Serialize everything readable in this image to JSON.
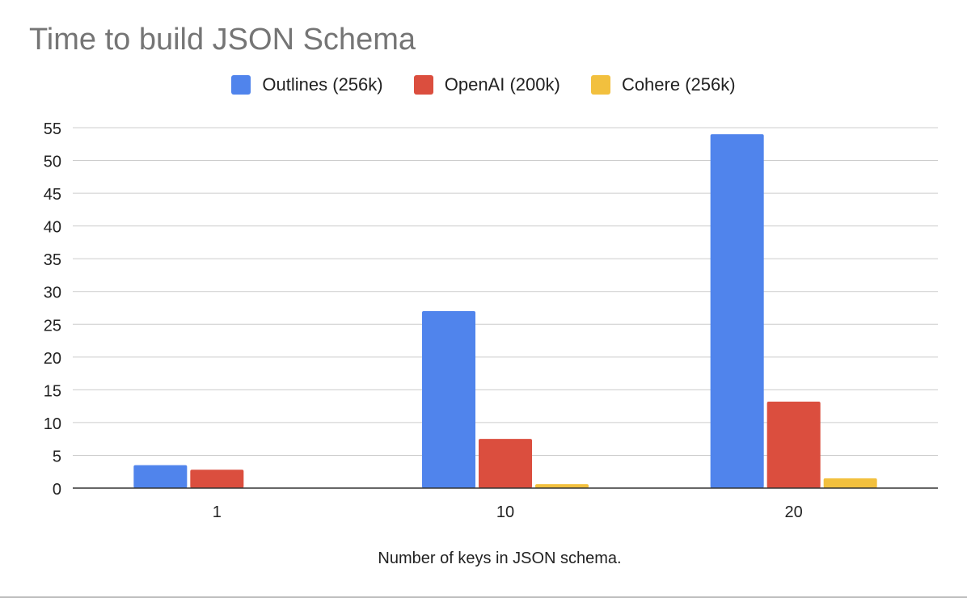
{
  "chart_data": {
    "type": "bar",
    "title": "Time to build JSON Schema",
    "xlabel": "Number of keys in JSON schema.",
    "ylabel": "",
    "categories": [
      "1",
      "10",
      "20"
    ],
    "series": [
      {
        "name": "Outlines (256k)",
        "color": "#5084EC",
        "values": [
          3.5,
          27,
          54
        ]
      },
      {
        "name": "OpenAI (200k)",
        "color": "#DB4E3E",
        "values": [
          2.8,
          7.5,
          13.2
        ]
      },
      {
        "name": "Cohere (256k)",
        "color": "#F2C03E",
        "values": [
          0,
          0.6,
          1.5
        ]
      }
    ],
    "ylim": [
      0,
      55
    ],
    "yticks": [
      "0",
      "5",
      "10",
      "15",
      "20",
      "25",
      "30",
      "35",
      "40",
      "45",
      "50",
      "55"
    ],
    "grid": true,
    "legend_position": "top-center"
  }
}
